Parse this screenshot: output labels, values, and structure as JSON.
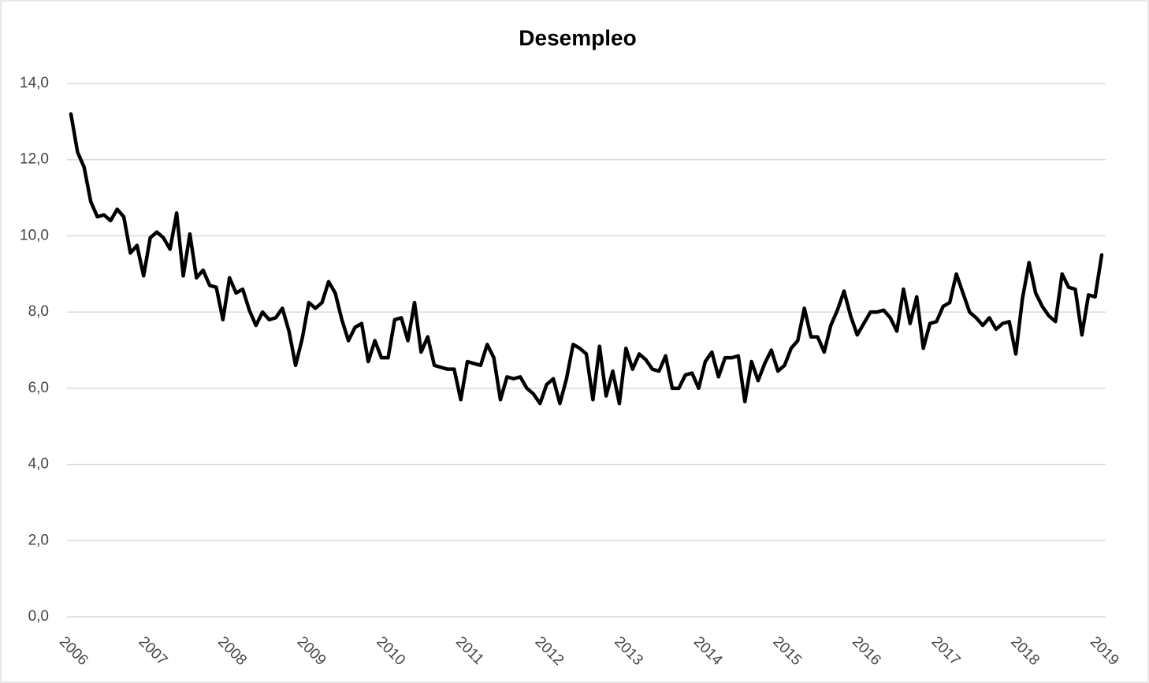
{
  "chart_data": {
    "type": "line",
    "title": "Desempleo",
    "categories": [
      "2006",
      null,
      null,
      null,
      null,
      null,
      null,
      null,
      null,
      null,
      null,
      null,
      "2007",
      null,
      null,
      null,
      null,
      null,
      null,
      null,
      null,
      null,
      null,
      null,
      "2008",
      null,
      null,
      null,
      null,
      null,
      null,
      null,
      null,
      null,
      null,
      null,
      "2009",
      null,
      null,
      null,
      null,
      null,
      null,
      null,
      null,
      null,
      null,
      null,
      "2010",
      null,
      null,
      null,
      null,
      null,
      null,
      null,
      null,
      null,
      null,
      null,
      "2011",
      null,
      null,
      null,
      null,
      null,
      null,
      null,
      null,
      null,
      null,
      null,
      "2012",
      null,
      null,
      null,
      null,
      null,
      null,
      null,
      null,
      null,
      null,
      null,
      "2013",
      null,
      null,
      null,
      null,
      null,
      null,
      null,
      null,
      null,
      null,
      null,
      "2014",
      null,
      null,
      null,
      null,
      null,
      null,
      null,
      null,
      null,
      null,
      null,
      "2015",
      null,
      null,
      null,
      null,
      null,
      null,
      null,
      null,
      null,
      null,
      null,
      "2016",
      null,
      null,
      null,
      null,
      null,
      null,
      null,
      null,
      null,
      null,
      null,
      "2017",
      null,
      null,
      null,
      null,
      null,
      null,
      null,
      null,
      null,
      null,
      null,
      "2018",
      null,
      null,
      null,
      null,
      null,
      null,
      null,
      null,
      null,
      null,
      null,
      "2019"
    ],
    "series": [
      {
        "name": "Desempleo",
        "color": "#000000",
        "values": [
          13.2,
          12.2,
          11.8,
          10.9,
          10.5,
          10.55,
          10.4,
          10.7,
          10.5,
          9.55,
          9.75,
          8.95,
          9.95,
          10.1,
          9.95,
          9.65,
          10.6,
          8.95,
          10.05,
          8.9,
          9.1,
          8.7,
          8.65,
          7.8,
          8.9,
          8.5,
          8.6,
          8.05,
          7.65,
          8.0,
          7.8,
          7.85,
          8.1,
          7.5,
          6.6,
          7.3,
          8.25,
          8.1,
          8.25,
          8.8,
          8.5,
          7.8,
          7.25,
          7.6,
          7.7,
          6.7,
          7.25,
          6.8,
          6.8,
          7.8,
          7.85,
          7.25,
          8.25,
          6.95,
          7.35,
          6.6,
          6.55,
          6.5,
          6.5,
          5.7,
          6.7,
          6.65,
          6.6,
          7.15,
          6.8,
          5.7,
          6.3,
          6.25,
          6.3,
          6.0,
          5.85,
          5.6,
          6.1,
          6.25,
          5.6,
          6.25,
          7.15,
          7.05,
          6.9,
          5.7,
          7.1,
          5.8,
          6.45,
          5.6,
          7.05,
          6.5,
          6.9,
          6.75,
          6.5,
          6.45,
          6.85,
          6.0,
          6.0,
          6.35,
          6.4,
          6.0,
          6.7,
          6.95,
          6.3,
          6.8,
          6.8,
          6.85,
          5.65,
          6.7,
          6.2,
          6.65,
          7.0,
          6.45,
          6.6,
          7.05,
          7.25,
          8.1,
          7.35,
          7.35,
          6.95,
          7.65,
          8.05,
          8.55,
          7.9,
          7.4,
          7.7,
          8.0,
          8.0,
          8.05,
          7.85,
          7.5,
          8.6,
          7.7,
          8.4,
          7.05,
          7.7,
          7.75,
          8.15,
          8.25,
          9.0,
          8.5,
          8.0,
          7.85,
          7.65,
          7.85,
          7.55,
          7.7,
          7.75,
          6.9,
          8.35,
          9.3,
          8.5,
          8.15,
          7.9,
          7.75,
          9.0,
          8.65,
          8.6,
          7.4,
          8.45,
          8.4,
          9.5
        ]
      }
    ],
    "ylim": [
      0,
      14
    ],
    "yticks": [
      {
        "value": 0,
        "label": "0,0"
      },
      {
        "value": 2,
        "label": "2,0"
      },
      {
        "value": 4,
        "label": "4,0"
      },
      {
        "value": 6,
        "label": "6,0"
      },
      {
        "value": 8,
        "label": "8,0"
      },
      {
        "value": 10,
        "label": "10,0"
      },
      {
        "value": 12,
        "label": "12,0"
      },
      {
        "value": 14,
        "label": "14,0"
      }
    ],
    "grid": true
  }
}
